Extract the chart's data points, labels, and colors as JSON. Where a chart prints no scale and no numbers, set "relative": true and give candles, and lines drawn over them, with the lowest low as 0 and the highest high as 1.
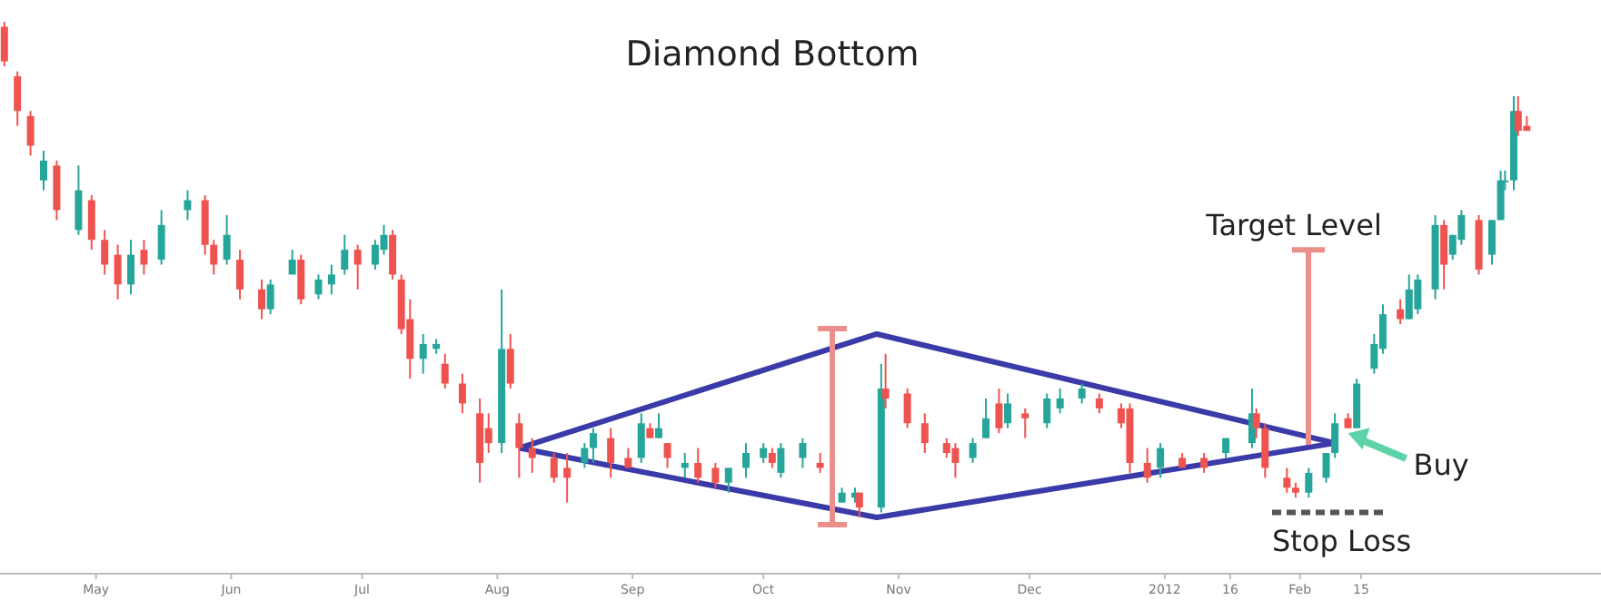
{
  "chart_data": {
    "type": "candlestick",
    "title": "Diamond Bottom",
    "relative": true,
    "xlim": [
      "2011-04-09",
      "2012-04-10"
    ],
    "xticks": [
      {
        "value": "2011-05-01",
        "label": "May"
      },
      {
        "value": "2011-06-01",
        "label": "Jun"
      },
      {
        "value": "2011-07-01",
        "label": "Jul"
      },
      {
        "value": "2011-08-01",
        "label": "Aug"
      },
      {
        "value": "2011-09-01",
        "label": "Sep"
      },
      {
        "value": "2011-10-01",
        "label": "Oct"
      },
      {
        "value": "2011-11-01",
        "label": "Nov"
      },
      {
        "value": "2011-12-01",
        "label": "Dec"
      },
      {
        "value": "2012-01-01",
        "label": "2012"
      },
      {
        "value": "2012-01-16",
        "label": "16"
      },
      {
        "value": "2012-02-01",
        "label": "Feb"
      },
      {
        "value": "2012-02-15",
        "label": "15"
      }
    ],
    "x": [
      "2011-04-10",
      "2011-04-13",
      "2011-04-16",
      "2011-04-19",
      "2011-04-22",
      "2011-04-27",
      "2011-04-30",
      "2011-05-03",
      "2011-05-06",
      "2011-05-09",
      "2011-05-12",
      "2011-05-16",
      "2011-05-22",
      "2011-05-26",
      "2011-05-28",
      "2011-05-31",
      "2011-06-03",
      "2011-06-08",
      "2011-06-10",
      "2011-06-15",
      "2011-06-17",
      "2011-06-21",
      "2011-06-24",
      "2011-06-27",
      "2011-06-30",
      "2011-07-04",
      "2011-07-06",
      "2011-07-08",
      "2011-07-10",
      "2011-07-12",
      "2011-07-15",
      "2011-07-18",
      "2011-07-20",
      "2011-07-24",
      "2011-07-28",
      "2011-07-30",
      "2011-08-02",
      "2011-08-04",
      "2011-08-06",
      "2011-08-09",
      "2011-08-14",
      "2011-08-17",
      "2011-08-21",
      "2011-08-23",
      "2011-08-27",
      "2011-08-31",
      "2011-09-03",
      "2011-09-05",
      "2011-09-07",
      "2011-09-09",
      "2011-09-13",
      "2011-09-16",
      "2011-09-20",
      "2011-09-23",
      "2011-09-27",
      "2011-10-01",
      "2011-10-03",
      "2011-10-05",
      "2011-10-10",
      "2011-10-14",
      "2011-10-19",
      "2011-10-22",
      "2011-10-23",
      "2011-10-28",
      "2011-10-29",
      "2011-11-03",
      "2011-11-07",
      "2011-11-12",
      "2011-11-14",
      "2011-11-18",
      "2011-11-21",
      "2011-11-24",
      "2011-11-26",
      "2011-11-30",
      "2011-12-05",
      "2011-12-08",
      "2011-12-13",
      "2011-12-17",
      "2011-12-22",
      "2011-12-24",
      "2011-12-28",
      "2011-12-31",
      "2012-01-05",
      "2012-01-10",
      "2012-01-15",
      "2012-01-21",
      "2012-01-22",
      "2012-01-24",
      "2012-01-29",
      "2012-01-31",
      "2012-02-03",
      "2012-02-07",
      "2012-02-09",
      "2012-02-12",
      "2012-02-14",
      "2012-02-18",
      "2012-02-20",
      "2012-02-24",
      "2012-02-26",
      "2012-02-28",
      "2012-03-03",
      "2012-03-05",
      "2012-03-07",
      "2012-03-09",
      "2012-03-13",
      "2012-03-16",
      "2012-03-18",
      "2012-03-19",
      "2012-03-21",
      "2012-03-22",
      "2012-03-24"
    ],
    "ohlc": [
      [
        0.99,
        1.0,
        0.91,
        0.92
      ],
      [
        0.89,
        0.9,
        0.79,
        0.82
      ],
      [
        0.81,
        0.82,
        0.73,
        0.75
      ],
      [
        0.68,
        0.74,
        0.66,
        0.72
      ],
      [
        0.71,
        0.72,
        0.6,
        0.62
      ],
      [
        0.58,
        0.71,
        0.57,
        0.66
      ],
      [
        0.64,
        0.65,
        0.54,
        0.56
      ],
      [
        0.56,
        0.58,
        0.49,
        0.51
      ],
      [
        0.53,
        0.55,
        0.44,
        0.47
      ],
      [
        0.47,
        0.56,
        0.45,
        0.53
      ],
      [
        0.54,
        0.56,
        0.49,
        0.51
      ],
      [
        0.52,
        0.62,
        0.51,
        0.59
      ],
      [
        0.62,
        0.66,
        0.6,
        0.64
      ],
      [
        0.64,
        0.65,
        0.53,
        0.55
      ],
      [
        0.55,
        0.56,
        0.49,
        0.51
      ],
      [
        0.52,
        0.61,
        0.51,
        0.57
      ],
      [
        0.52,
        0.54,
        0.44,
        0.46
      ],
      [
        0.46,
        0.48,
        0.4,
        0.42
      ],
      [
        0.42,
        0.48,
        0.41,
        0.47
      ],
      [
        0.49,
        0.54,
        0.49,
        0.52
      ],
      [
        0.52,
        0.53,
        0.43,
        0.44
      ],
      [
        0.45,
        0.49,
        0.44,
        0.48
      ],
      [
        0.47,
        0.51,
        0.45,
        0.49
      ],
      [
        0.5,
        0.57,
        0.49,
        0.54
      ],
      [
        0.54,
        0.55,
        0.46,
        0.51
      ],
      [
        0.51,
        0.56,
        0.5,
        0.55
      ],
      [
        0.54,
        0.59,
        0.53,
        0.57
      ],
      [
        0.57,
        0.58,
        0.48,
        0.49
      ],
      [
        0.48,
        0.49,
        0.37,
        0.38
      ],
      [
        0.4,
        0.44,
        0.28,
        0.32
      ],
      [
        0.32,
        0.37,
        0.29,
        0.35
      ],
      [
        0.34,
        0.36,
        0.33,
        0.35
      ],
      [
        0.31,
        0.33,
        0.26,
        0.27
      ],
      [
        0.27,
        0.29,
        0.21,
        0.23
      ],
      [
        0.21,
        0.24,
        0.07,
        0.11
      ],
      [
        0.18,
        0.21,
        0.13,
        0.15
      ],
      [
        0.15,
        0.46,
        0.13,
        0.34
      ],
      [
        0.34,
        0.37,
        0.26,
        0.27
      ],
      [
        0.19,
        0.21,
        0.08,
        0.14
      ],
      [
        0.14,
        0.16,
        0.09,
        0.12
      ],
      [
        0.12,
        0.13,
        0.07,
        0.08
      ],
      [
        0.1,
        0.13,
        0.03,
        0.08
      ],
      [
        0.11,
        0.15,
        0.1,
        0.14
      ],
      [
        0.14,
        0.18,
        0.11,
        0.17
      ],
      [
        0.16,
        0.18,
        0.08,
        0.11
      ],
      [
        0.12,
        0.14,
        0.1,
        0.1
      ],
      [
        0.12,
        0.21,
        0.11,
        0.19
      ],
      [
        0.18,
        0.19,
        0.16,
        0.16
      ],
      [
        0.16,
        0.21,
        0.16,
        0.18
      ],
      [
        0.15,
        0.15,
        0.1,
        0.12
      ],
      [
        0.1,
        0.13,
        0.08,
        0.11
      ],
      [
        0.11,
        0.14,
        0.07,
        0.08
      ],
      [
        0.1,
        0.11,
        0.06,
        0.07
      ],
      [
        0.07,
        0.1,
        0.05,
        0.1
      ],
      [
        0.1,
        0.15,
        0.08,
        0.13
      ],
      [
        0.12,
        0.15,
        0.11,
        0.14
      ],
      [
        0.13,
        0.14,
        0.1,
        0.11
      ],
      [
        0.09,
        0.15,
        0.08,
        0.14
      ],
      [
        0.12,
        0.16,
        0.1,
        0.15
      ],
      [
        0.11,
        0.13,
        0.09,
        0.1
      ],
      [
        0.03,
        0.06,
        0.03,
        0.05
      ],
      [
        0.04,
        0.06,
        0.03,
        0.05
      ],
      [
        0.05,
        0.05,
        0.0,
        0.02
      ],
      [
        0.02,
        0.31,
        0.01,
        0.26
      ],
      [
        0.26,
        0.33,
        0.22,
        0.24
      ],
      [
        0.25,
        0.26,
        0.18,
        0.19
      ],
      [
        0.19,
        0.21,
        0.13,
        0.15
      ],
      [
        0.15,
        0.16,
        0.12,
        0.13
      ],
      [
        0.14,
        0.15,
        0.08,
        0.11
      ],
      [
        0.12,
        0.16,
        0.11,
        0.15
      ],
      [
        0.16,
        0.24,
        0.16,
        0.2
      ],
      [
        0.23,
        0.26,
        0.17,
        0.18
      ],
      [
        0.19,
        0.25,
        0.18,
        0.23
      ],
      [
        0.21,
        0.22,
        0.16,
        0.2
      ],
      [
        0.19,
        0.25,
        0.18,
        0.24
      ],
      [
        0.22,
        0.26,
        0.21,
        0.24
      ],
      [
        0.24,
        0.27,
        0.23,
        0.26
      ],
      [
        0.24,
        0.25,
        0.21,
        0.22
      ],
      [
        0.22,
        0.23,
        0.18,
        0.19
      ],
      [
        0.22,
        0.23,
        0.09,
        0.11
      ],
      [
        0.11,
        0.14,
        0.07,
        0.08
      ],
      [
        0.1,
        0.15,
        0.08,
        0.14
      ],
      [
        0.12,
        0.13,
        0.1,
        0.1
      ],
      [
        0.12,
        0.13,
        0.09,
        0.1
      ],
      [
        0.13,
        0.16,
        0.12,
        0.16
      ],
      [
        0.15,
        0.26,
        0.14,
        0.21
      ],
      [
        0.21,
        0.22,
        0.16,
        0.18
      ],
      [
        0.18,
        0.19,
        0.08,
        0.1
      ],
      [
        0.08,
        0.1,
        0.05,
        0.06
      ],
      [
        0.06,
        0.07,
        0.04,
        0.05
      ],
      [
        0.05,
        0.1,
        0.04,
        0.09
      ],
      [
        0.08,
        0.13,
        0.07,
        0.13
      ],
      [
        0.13,
        0.21,
        0.12,
        0.19
      ],
      [
        0.2,
        0.21,
        0.18,
        0.18
      ],
      [
        0.18,
        0.28,
        0.18,
        0.27
      ],
      [
        0.3,
        0.37,
        0.29,
        0.35
      ],
      [
        0.34,
        0.43,
        0.33,
        0.41
      ],
      [
        0.42,
        0.44,
        0.39,
        0.4
      ],
      [
        0.4,
        0.49,
        0.4,
        0.46
      ],
      [
        0.42,
        0.49,
        0.41,
        0.48
      ],
      [
        0.46,
        0.61,
        0.44,
        0.59
      ],
      [
        0.59,
        0.6,
        0.46,
        0.51
      ],
      [
        0.53,
        0.57,
        0.52,
        0.57
      ],
      [
        0.56,
        0.62,
        0.55,
        0.61
      ],
      [
        0.6,
        0.61,
        0.49,
        0.5
      ],
      [
        0.53,
        0.6,
        0.51,
        0.6
      ],
      [
        0.6,
        0.7,
        0.6,
        0.68
      ],
      [
        0.68,
        0.7,
        0.66,
        0.68
      ],
      [
        0.68,
        0.85,
        0.66,
        0.82
      ],
      [
        0.82,
        0.85,
        0.77,
        0.78
      ],
      [
        0.79,
        0.81,
        0.78,
        0.78
      ]
    ],
    "series": [
      {
        "type": "line",
        "color": "#3a3aa8",
        "x": [
          "2011-08-06",
          "2011-10-27",
          "2012-02-09"
        ],
        "values": [
          0.14,
          0.37,
          0.15
        ]
      },
      {
        "type": "line",
        "color": "#3a3aa8",
        "x": [
          "2011-08-06",
          "2011-10-27",
          "2012-02-09"
        ],
        "values": [
          0.14,
          0.0,
          0.15
        ]
      }
    ],
    "ref_lines": [
      {
        "axis": "y",
        "value": 0.54,
        "label": "Target Level",
        "color": "#ec8f8a"
      },
      {
        "axis": "y",
        "value": 0.01,
        "label": "Stop Loss",
        "color": "#555555",
        "line_style": "dashed"
      }
    ],
    "annotations": [
      {
        "text": "Buy",
        "x": "2012-02-12",
        "y": 0.17
      }
    ]
  }
}
